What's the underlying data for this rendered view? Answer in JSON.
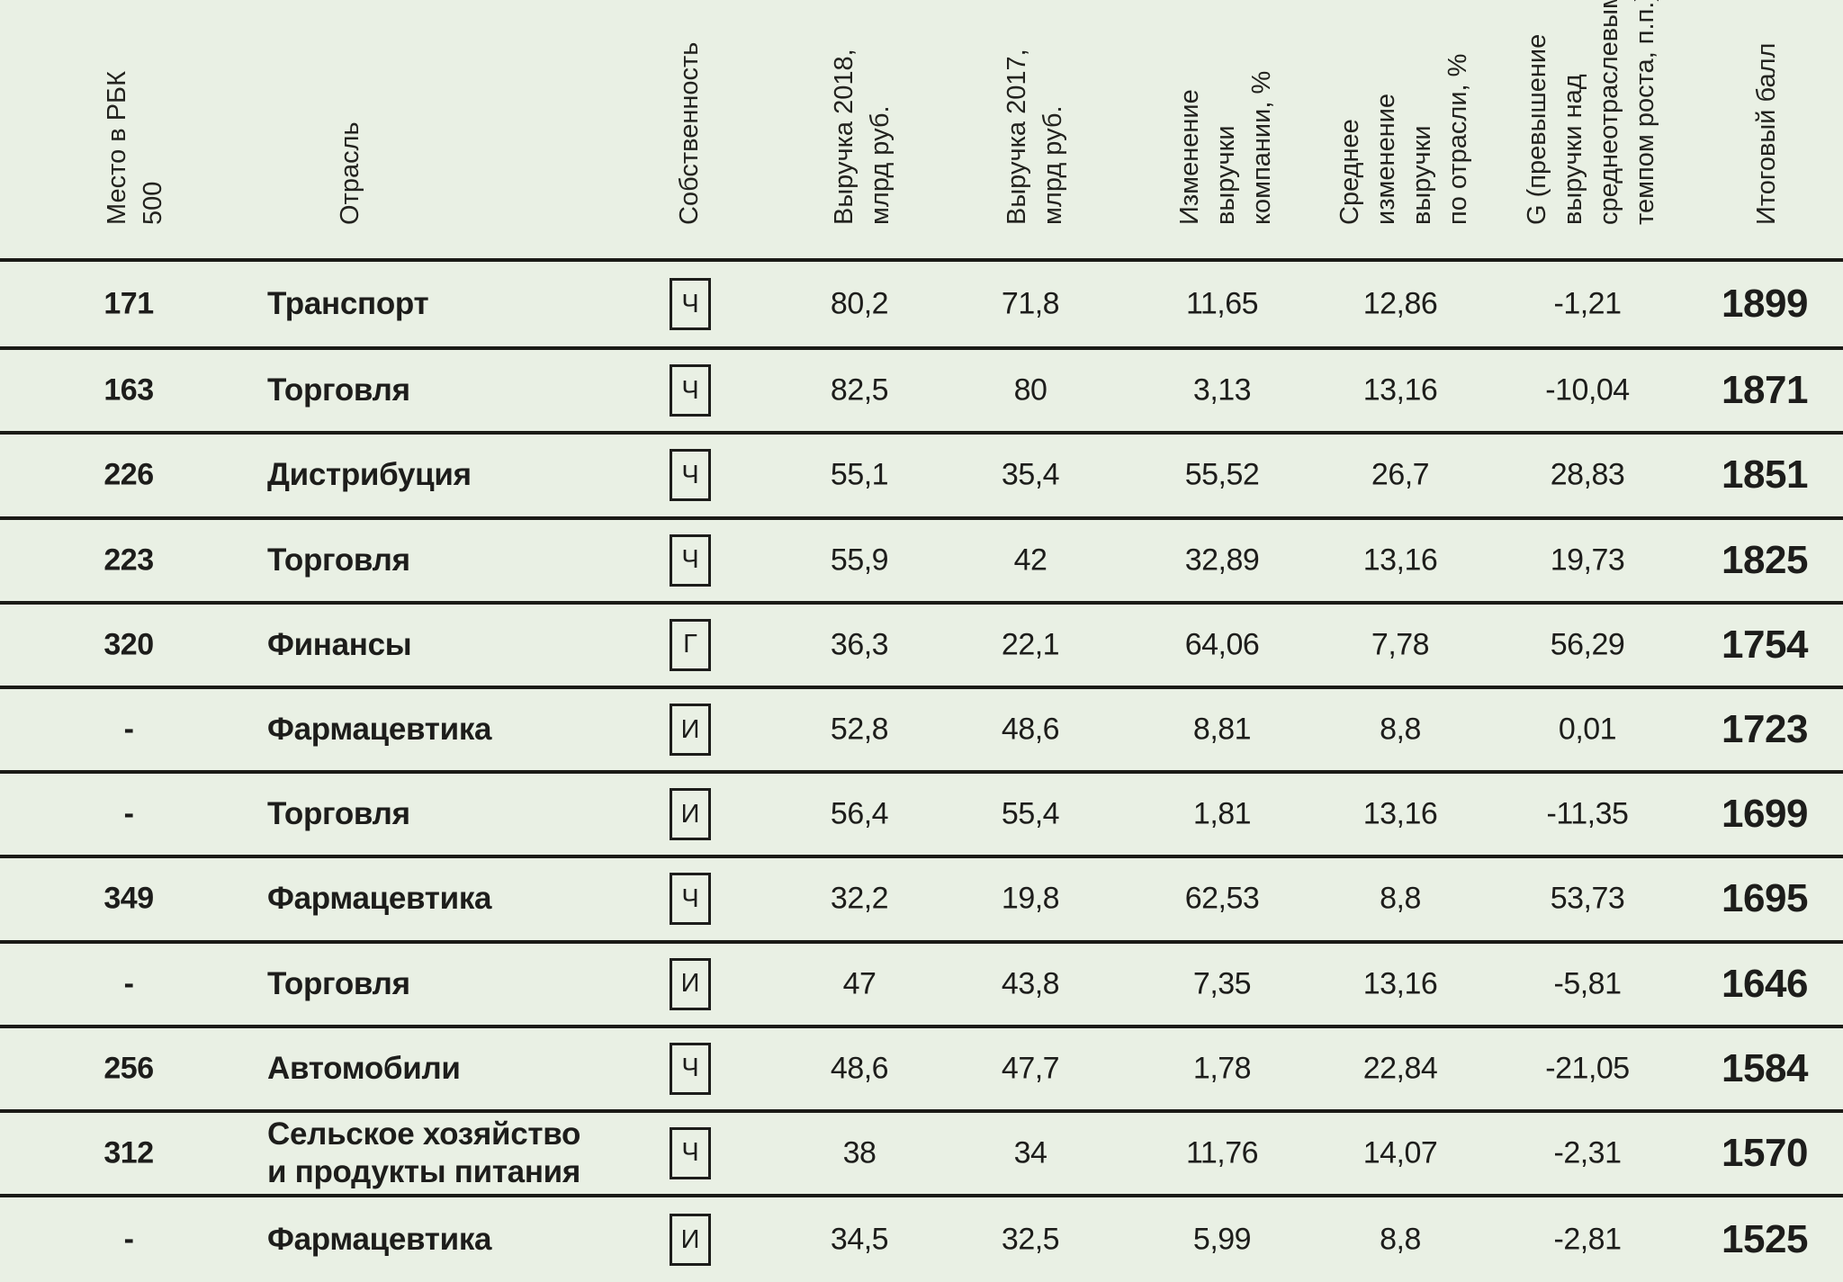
{
  "colors": {
    "background": "#e9f0e4",
    "line": "#1b1b17",
    "text": "#1d1d1b"
  },
  "chart_data": {
    "type": "table",
    "columns": [
      {
        "id": "rank",
        "label": "Место в РБК\n500"
      },
      {
        "id": "industry",
        "label": "Отрасль"
      },
      {
        "id": "ownership",
        "label": "Собственность"
      },
      {
        "id": "revenue2018",
        "label": "Выручка 2018,\nмлрд руб."
      },
      {
        "id": "revenue2017",
        "label": "Выручка 2017,\nмлрд руб."
      },
      {
        "id": "change",
        "label": "Изменение\nвыручки\nкомпании, %"
      },
      {
        "id": "avg_change",
        "label": "Среднее\nизменение\nвыручки\nпо отрасли, %"
      },
      {
        "id": "g",
        "label": "G (превышение\nвыручки над\nсреднеотраслевым\nтемпом роста, п.п.)"
      },
      {
        "id": "score",
        "label": "Итоговый балл"
      }
    ],
    "rows": [
      {
        "rank": "171",
        "industry": "Транспорт",
        "ownership": "Ч",
        "revenue2018": "80,2",
        "revenue2017": "71,8",
        "change": "11,65",
        "avg_change": "12,86",
        "g": "-1,21",
        "score": "1899"
      },
      {
        "rank": "163",
        "industry": "Торговля",
        "ownership": "Ч",
        "revenue2018": "82,5",
        "revenue2017": "80",
        "change": "3,13",
        "avg_change": "13,16",
        "g": "-10,04",
        "score": "1871"
      },
      {
        "rank": "226",
        "industry": "Дистрибуция",
        "ownership": "Ч",
        "revenue2018": "55,1",
        "revenue2017": "35,4",
        "change": "55,52",
        "avg_change": "26,7",
        "g": "28,83",
        "score": "1851"
      },
      {
        "rank": "223",
        "industry": "Торговля",
        "ownership": "Ч",
        "revenue2018": "55,9",
        "revenue2017": "42",
        "change": "32,89",
        "avg_change": "13,16",
        "g": "19,73",
        "score": "1825"
      },
      {
        "rank": "320",
        "industry": "Финансы",
        "ownership": "Г",
        "revenue2018": "36,3",
        "revenue2017": "22,1",
        "change": "64,06",
        "avg_change": "7,78",
        "g": "56,29",
        "score": "1754"
      },
      {
        "rank": "-",
        "industry": "Фармацевтика",
        "ownership": "И",
        "revenue2018": "52,8",
        "revenue2017": "48,6",
        "change": "8,81",
        "avg_change": "8,8",
        "g": "0,01",
        "score": "1723"
      },
      {
        "rank": "-",
        "industry": "Торговля",
        "ownership": "И",
        "revenue2018": "56,4",
        "revenue2017": "55,4",
        "change": "1,81",
        "avg_change": "13,16",
        "g": "-11,35",
        "score": "1699"
      },
      {
        "rank": "349",
        "industry": "Фармацевтика",
        "ownership": "Ч",
        "revenue2018": "32,2",
        "revenue2017": "19,8",
        "change": "62,53",
        "avg_change": "8,8",
        "g": "53,73",
        "score": "1695"
      },
      {
        "rank": "-",
        "industry": "Торговля",
        "ownership": "И",
        "revenue2018": "47",
        "revenue2017": "43,8",
        "change": "7,35",
        "avg_change": "13,16",
        "g": "-5,81",
        "score": "1646"
      },
      {
        "rank": "256",
        "industry": "Автомобили",
        "ownership": "Ч",
        "revenue2018": "48,6",
        "revenue2017": "47,7",
        "change": "1,78",
        "avg_change": "22,84",
        "g": "-21,05",
        "score": "1584"
      },
      {
        "rank": "312",
        "industry": "Сельское хозяйство\nи продукты питания",
        "ownership": "Ч",
        "revenue2018": "38",
        "revenue2017": "34",
        "change": "11,76",
        "avg_change": "14,07",
        "g": "-2,31",
        "score": "1570"
      },
      {
        "rank": "-",
        "industry": "Фармацевтика",
        "ownership": "И",
        "revenue2018": "34,5",
        "revenue2017": "32,5",
        "change": "5,99",
        "avg_change": "8,8",
        "g": "-2,81",
        "score": "1525"
      }
    ]
  }
}
